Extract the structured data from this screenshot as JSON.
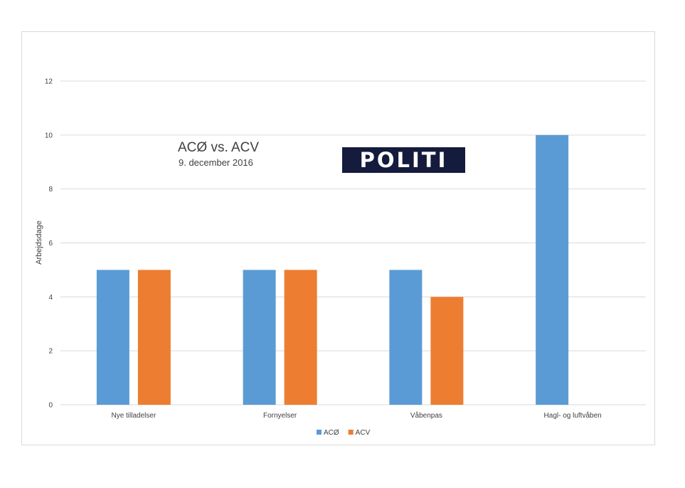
{
  "chart_data": {
    "type": "bar",
    "title": "ACØ vs. ACV",
    "subtitle": "9. december 2016",
    "xlabel": "",
    "ylabel": "Arbejdsdage",
    "ylim": [
      0,
      12
    ],
    "yticks": [
      0,
      2,
      4,
      6,
      8,
      10,
      12
    ],
    "grid": true,
    "legend_position": "bottom",
    "categories": [
      "Nye tilladelser",
      "Fornyelser",
      "Våbenpas",
      "Hagl- og luftvåben"
    ],
    "series": [
      {
        "name": "ACØ",
        "color": "#5b9bd5",
        "values": [
          5,
          5,
          5,
          10
        ]
      },
      {
        "name": "ACV",
        "color": "#ed7d31",
        "values": [
          5,
          5,
          4,
          null
        ]
      }
    ]
  },
  "logo": {
    "text": "POLITI",
    "background": "#141b3c",
    "text_color": "#ffffff"
  }
}
